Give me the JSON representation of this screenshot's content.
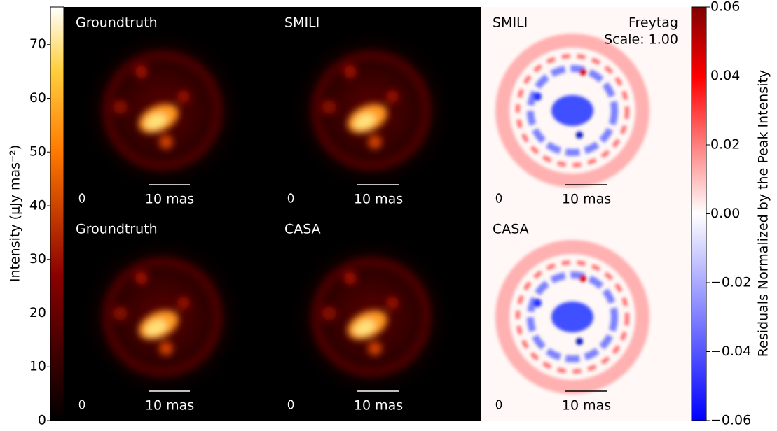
{
  "colorbars": [
    {
      "label": "Intensity (μJy mas⁻²)",
      "lim": [
        0,
        77
      ],
      "ticks": [
        0,
        10,
        20,
        30,
        40,
        50,
        60,
        70
      ]
    },
    {
      "label": "Residuals Normalized by the Peak Intensity",
      "lim": [
        -0.06,
        0.06
      ],
      "ticks": [
        {
          "value": -0.06,
          "label": "−0.06"
        },
        {
          "value": -0.04,
          "label": "−0.04"
        },
        {
          "value": -0.02,
          "label": "−0.02"
        },
        {
          "value": 0,
          "label": "0.00"
        },
        0.02,
        0.04,
        0.06
      ]
    }
  ],
  "panels": [
    {
      "label": "Groundtruth",
      "scalebar": "10 mas"
    },
    {
      "label": "SMILI",
      "scalebar": "10 mas"
    },
    {
      "label": "SMILI",
      "scalebar": "10 mas",
      "annotation": [
        "Freytag",
        "Scale: 1.00"
      ]
    },
    {
      "label": "Groundtruth",
      "scalebar": "10 mas"
    },
    {
      "label": "CASA",
      "scalebar": "10 mas"
    },
    {
      "label": "CASA",
      "scalebar": "10 mas"
    }
  ]
}
